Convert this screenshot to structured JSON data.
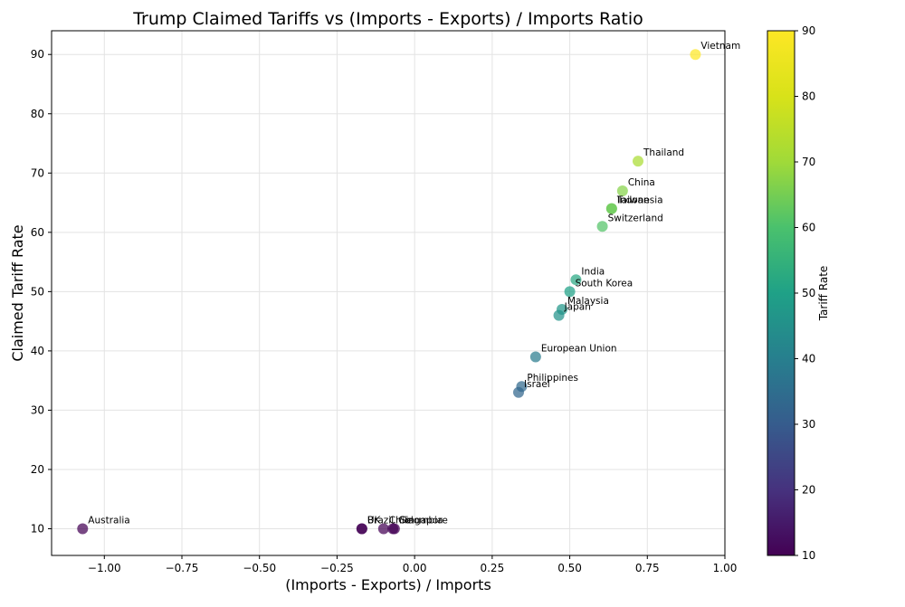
{
  "chart_data": {
    "type": "scatter",
    "title": "Trump Claimed Tariffs vs (Imports - Exports) / Imports Ratio",
    "xlabel": "(Imports - Exports) / Imports",
    "ylabel": "Claimed Tariff Rate",
    "xlim": [
      -1.17,
      1.0
    ],
    "ylim": [
      5.5,
      94
    ],
    "grid": true,
    "x_ticks": [
      -1.0,
      -0.75,
      -0.5,
      -0.25,
      0.0,
      0.25,
      0.5,
      0.75,
      1.0
    ],
    "x_tick_labels": [
      "−1.00",
      "−0.75",
      "−0.50",
      "−0.25",
      "0.00",
      "0.25",
      "0.50",
      "0.75",
      "1.00"
    ],
    "y_ticks": [
      10,
      20,
      30,
      40,
      50,
      60,
      70,
      80,
      90
    ],
    "y_tick_labels": [
      "10",
      "20",
      "30",
      "40",
      "50",
      "60",
      "70",
      "80",
      "90"
    ],
    "colormap": "viridis",
    "colorbar": {
      "label": "Tariff Rate",
      "range": [
        10,
        90
      ],
      "ticks": [
        10,
        20,
        30,
        40,
        50,
        60,
        70,
        80,
        90
      ],
      "tick_labels": [
        "10",
        "20",
        "30",
        "40",
        "50",
        "60",
        "70",
        "80",
        "90"
      ]
    },
    "points": [
      {
        "label": "Vietnam",
        "x": 0.905,
        "y": 90
      },
      {
        "label": "Thailand",
        "x": 0.72,
        "y": 72
      },
      {
        "label": "China",
        "x": 0.67,
        "y": 67
      },
      {
        "label": "Taiwan",
        "x": 0.635,
        "y": 64
      },
      {
        "label": "Indonesia",
        "x": 0.635,
        "y": 64
      },
      {
        "label": "Switzerland",
        "x": 0.605,
        "y": 61
      },
      {
        "label": "India",
        "x": 0.52,
        "y": 52
      },
      {
        "label": "South Korea",
        "x": 0.5,
        "y": 50
      },
      {
        "label": "Malaysia",
        "x": 0.475,
        "y": 47
      },
      {
        "label": "Japan",
        "x": 0.465,
        "y": 46
      },
      {
        "label": "European Union",
        "x": 0.39,
        "y": 39
      },
      {
        "label": "Philippines",
        "x": 0.345,
        "y": 34
      },
      {
        "label": "Israel",
        "x": 0.335,
        "y": 33
      },
      {
        "label": "Australia",
        "x": -1.07,
        "y": 10
      },
      {
        "label": "Brazil",
        "x": -0.17,
        "y": 10
      },
      {
        "label": "UK",
        "x": -0.17,
        "y": 10
      },
      {
        "label": "Chile",
        "x": -0.1,
        "y": 10
      },
      {
        "label": "Colombia",
        "x": -0.07,
        "y": 10
      },
      {
        "label": "Singapore",
        "x": -0.065,
        "y": 10
      }
    ]
  }
}
